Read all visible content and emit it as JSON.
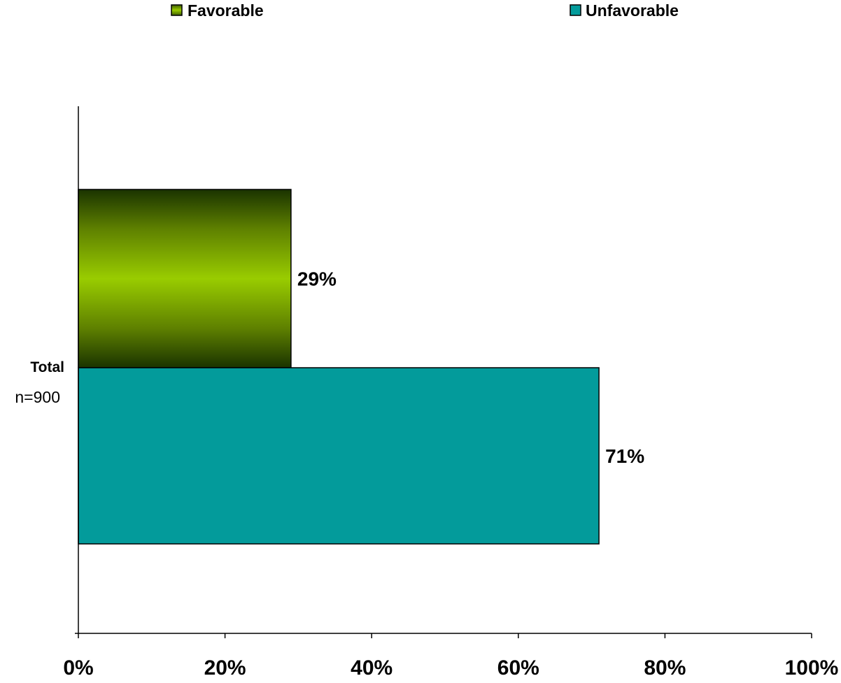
{
  "chart_data": {
    "type": "bar",
    "orientation": "horizontal",
    "categories": [
      {
        "label": "Total",
        "sublabel": "n=900"
      }
    ],
    "series": [
      {
        "name": "Favorable",
        "values": [
          29
        ],
        "value_labels": [
          "29%"
        ],
        "color": "#99cc00",
        "style": "gradient"
      },
      {
        "name": "Unfavorable",
        "values": [
          71
        ],
        "value_labels": [
          "71%"
        ],
        "color": "#039b9b",
        "style": "solid"
      }
    ],
    "x_ticks": [
      "0%",
      "20%",
      "40%",
      "60%",
      "80%",
      "100%"
    ],
    "xlim": [
      0,
      100
    ],
    "legend_position": "top",
    "grid": false
  }
}
